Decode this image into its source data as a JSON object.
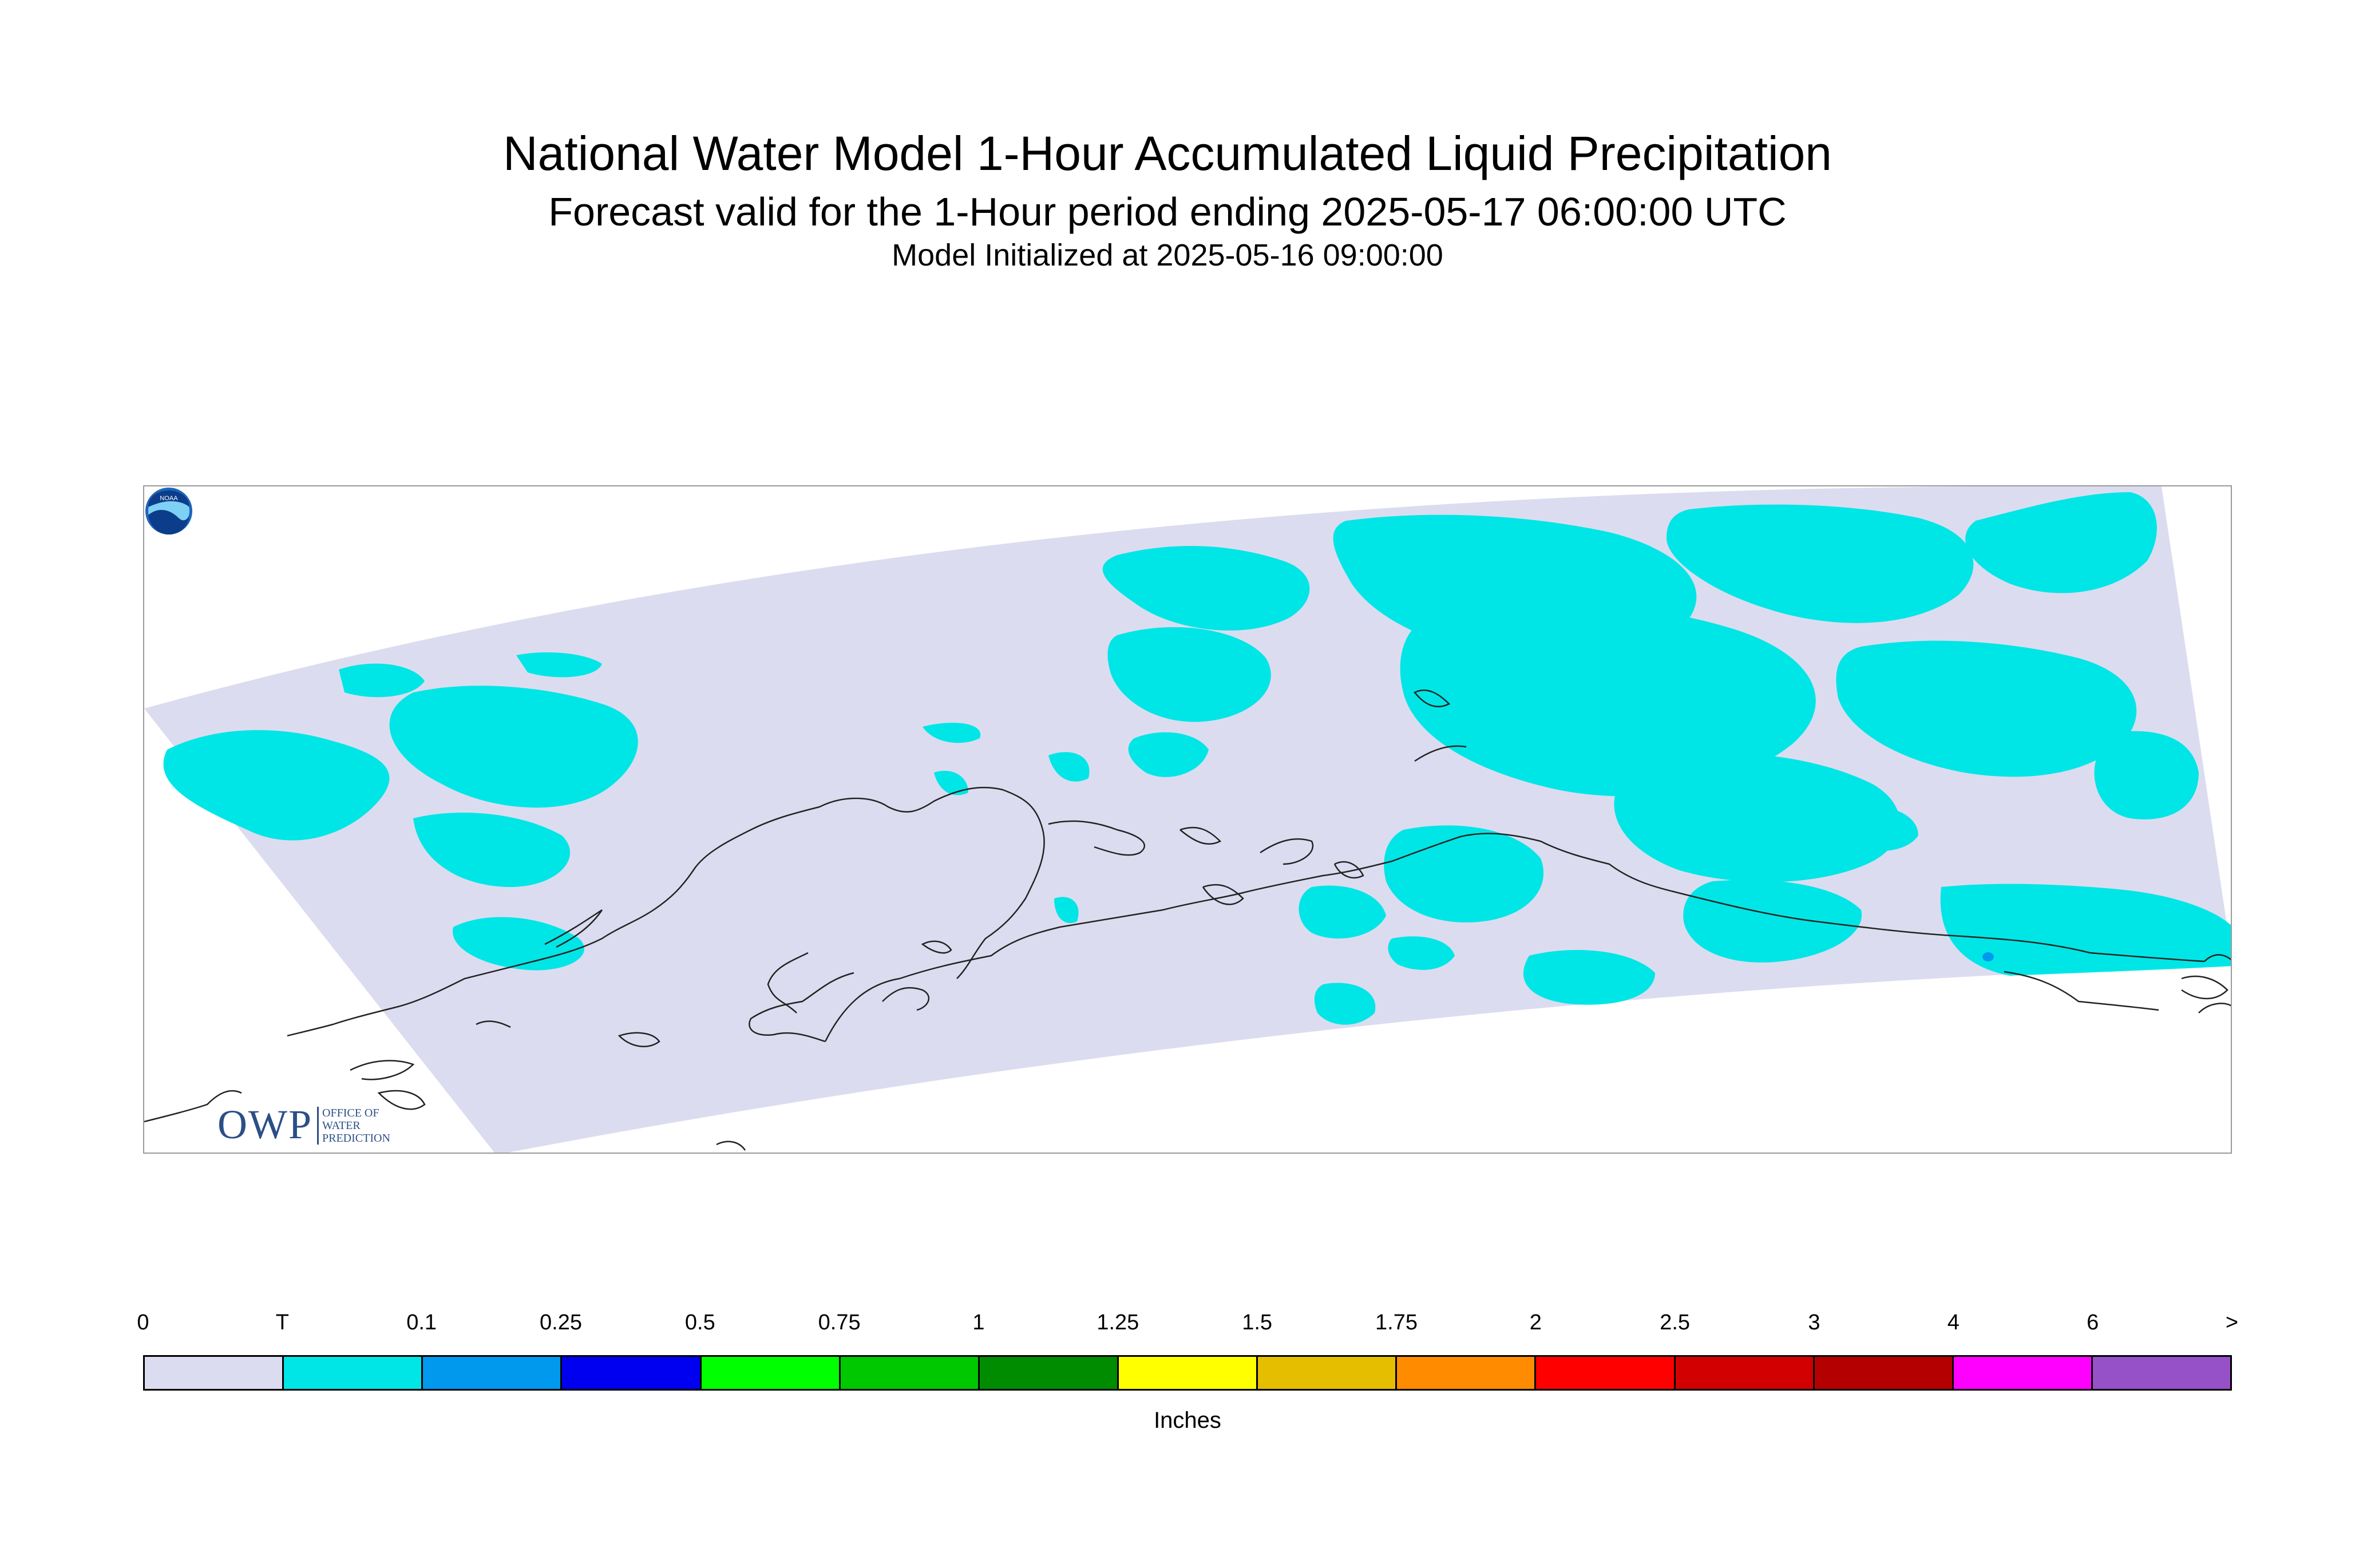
{
  "title": "National Water Model 1-Hour Accumulated Liquid Precipitation",
  "subtitle": "Forecast valid for the 1-Hour period ending 2025-05-17 06:00:00 UTC",
  "init_line": "Model Initialized at 2025-05-16 09:00:00",
  "logos": {
    "owp_main": "OWP",
    "owp_lines": [
      "OFFICE OF",
      "WATER",
      "PREDICTION"
    ],
    "noaa": "NOAA"
  },
  "colors": {
    "domain_fill": "#dcdcf0",
    "trace": "#00e6e6",
    "coast": "#222222",
    "frame": "#9a9a9a"
  },
  "legend": {
    "units": "Inches",
    "ticks": [
      "0",
      "T",
      "0.1",
      "0.25",
      "0.5",
      "0.75",
      "1",
      "1.25",
      "1.5",
      "1.75",
      "2",
      "2.5",
      "3",
      "4",
      "6",
      ">"
    ],
    "bins": [
      {
        "color": "#dcdcf0"
      },
      {
        "color": "#00e6e6"
      },
      {
        "color": "#0099ee"
      },
      {
        "color": "#0000f0"
      },
      {
        "color": "#00ff00"
      },
      {
        "color": "#00c800"
      },
      {
        "color": "#008c00"
      },
      {
        "color": "#ffff00"
      },
      {
        "color": "#e6be00"
      },
      {
        "color": "#ff8c00"
      },
      {
        "color": "#ff0000"
      },
      {
        "color": "#d20000"
      },
      {
        "color": "#b40000"
      },
      {
        "color": "#ff00ff"
      },
      {
        "color": "#9650c8"
      }
    ]
  }
}
